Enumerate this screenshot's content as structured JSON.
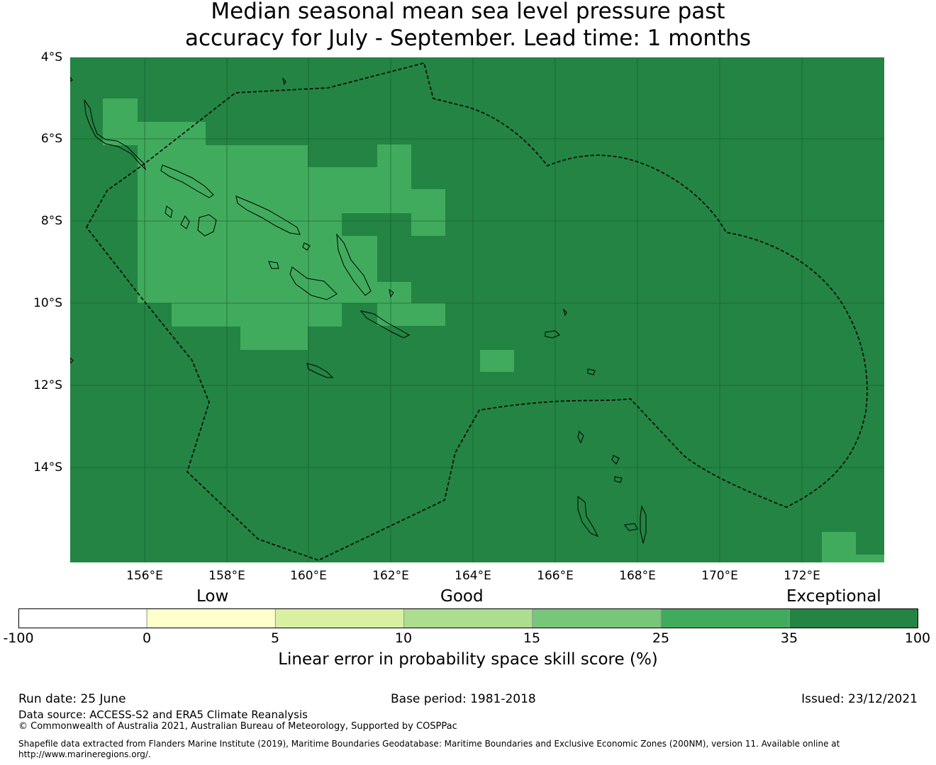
{
  "title": {
    "line1": "Median seasonal mean sea level pressure past",
    "line2": "accuracy for July - September. Lead time: 1 months"
  },
  "map": {
    "lat_labels": [
      "4°S",
      "6°S",
      "8°S",
      "10°S",
      "12°S",
      "14°S"
    ],
    "lon_labels": [
      "156°E",
      "158°E",
      "160°E",
      "162°E",
      "164°E",
      "166°E",
      "168°E",
      "170°E",
      "172°E"
    ],
    "background_category": "Exceptional",
    "highlight_category": "35",
    "colors": {
      "exceptional": "#238443",
      "band_25_35": "#41ab5d",
      "coast": "#000000",
      "grid": "#1a5a2c"
    }
  },
  "colorbar": {
    "category_labels": {
      "low": "Low",
      "good": "Good",
      "exceptional": "Exceptional"
    },
    "ticks": [
      "-100",
      "0",
      "5",
      "10",
      "15",
      "25",
      "35",
      "100"
    ],
    "colors": [
      "#ffffff",
      "#ffffcc",
      "#d9f0a3",
      "#addd8e",
      "#78c679",
      "#41ab5d",
      "#238443"
    ],
    "label": "Linear error in probability space skill score (%)"
  },
  "footer": {
    "run_date": "Run date: 25 June",
    "base_period": "Base period: 1981-2018",
    "issued": "Issued: 23/12/2021",
    "data_source": "Data source: ACCESS-S2 and ERA5 Climate Reanalysis",
    "copyright": "© Commonwealth of Australia 2021, Australian Bureau of Meteorology, Supported by COSPPac",
    "shapefile": "Shapefile data extracted from Flanders Marine Institute (2019), Maritime Boundaries Geodatabase: Maritime Boundaries and Exclusive Economic Zones (200NM), version 11. Available online at http://www.marineregions.org/."
  }
}
